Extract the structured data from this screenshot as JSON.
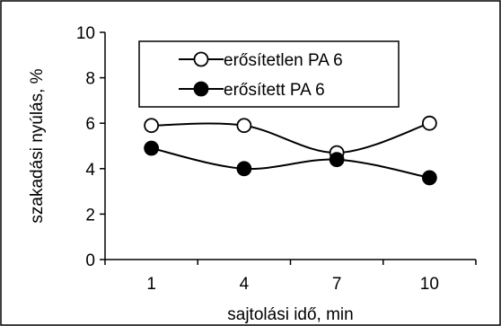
{
  "chart_data": {
    "type": "line",
    "categories": [
      "1",
      "4",
      "7",
      "10"
    ],
    "xlabel": "sajtolási idő, min",
    "ylabel": "szakadási nyúlás, %",
    "ylim": [
      0,
      10
    ],
    "yticks": [
      "0",
      "2",
      "4",
      "6",
      "8",
      "10"
    ],
    "grid": false,
    "legend_position": "top-center",
    "series": [
      {
        "name": "erősítetlen PA 6",
        "values": [
          5.9,
          5.9,
          4.7,
          6.0
        ],
        "marker": "open-circle",
        "color": "#000000"
      },
      {
        "name": "erősített PA 6",
        "values": [
          4.9,
          4.0,
          4.4,
          3.6
        ],
        "marker": "filled-circle",
        "color": "#000000"
      }
    ]
  }
}
